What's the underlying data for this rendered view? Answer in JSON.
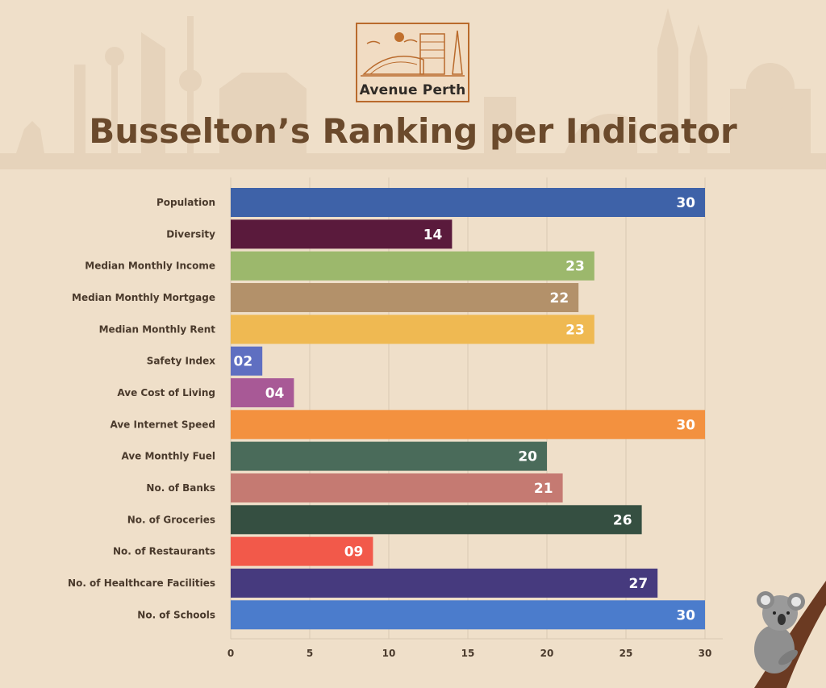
{
  "brand": {
    "logo_text": "Avenue Perth"
  },
  "title": "Busselton’s Ranking per Indicator",
  "colors": {
    "background": "#efdfc9",
    "title": "#6b4a2c",
    "grid": "#d8c8b2"
  },
  "chart_data": {
    "type": "bar",
    "orientation": "horizontal",
    "title": "Busselton’s Ranking per Indicator",
    "xlim": [
      0,
      30
    ],
    "xticks": [
      0,
      5,
      10,
      15,
      20,
      25,
      30
    ],
    "grid": true,
    "categories": [
      "Population",
      "Diversity",
      "Median Monthly Income",
      "Median Monthly Mortgage",
      "Median Monthly Rent",
      "Safety Index",
      "Ave Cost of Living",
      "Ave Internet Speed",
      "Ave Monthly Fuel",
      "No. of Banks",
      "No. of Groceries",
      "No. of Restaurants",
      "No. of Healthcare Facilities",
      "No. of Schools"
    ],
    "values": [
      30,
      14,
      23,
      22,
      23,
      2,
      4,
      30,
      20,
      21,
      26,
      9,
      27,
      30
    ],
    "value_labels": [
      "30",
      "14",
      "23",
      "22",
      "23",
      "02",
      "04",
      "30",
      "20",
      "21",
      "26",
      "09",
      "27",
      "30"
    ],
    "bar_colors": [
      "#3e62a8",
      "#5a1a3c",
      "#9cb86c",
      "#b3916a",
      "#efb952",
      "#5f6fc1",
      "#a85996",
      "#f3913f",
      "#4a6b5a",
      "#c57a72",
      "#354f41",
      "#f2594a",
      "#463a7e",
      "#4b7ccc"
    ]
  }
}
